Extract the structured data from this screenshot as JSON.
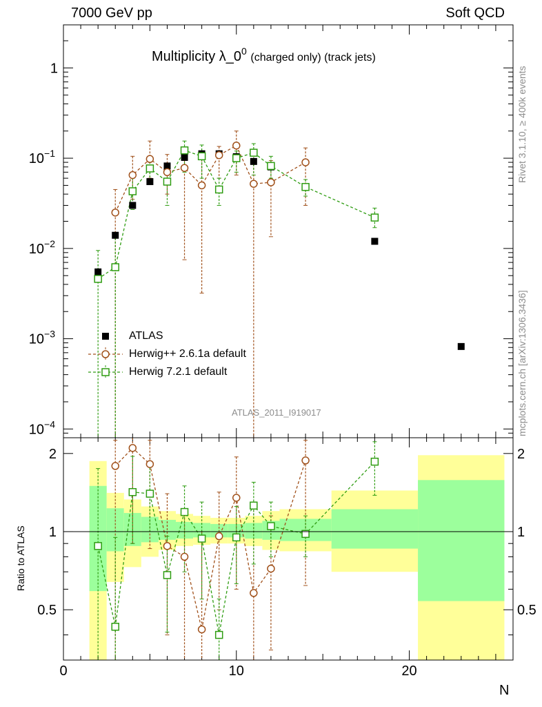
{
  "header": {
    "left": "7000 GeV pp",
    "right": "Soft QCD"
  },
  "side_text": {
    "top": "Rivet 3.1.10, ≥ 400k events",
    "bottom": "mcplots.cern.ch [arXiv:1306.3436]"
  },
  "colors": {
    "atlas": "#000000",
    "herwigpp": "#a0501a",
    "herwig7": "#2e9c11",
    "band_inner": "#9cff9c",
    "band_outer": "#ffff99",
    "side_text": "#8c8c8c"
  },
  "chart_data": {
    "type": "scatter",
    "title": "Multiplicity λ_0",
    "title_sup": "0",
    "title_suffix": "(charged only) (track jets)",
    "analysis": "ATLAS_2011_I919017",
    "xlabel": "N",
    "ylabel_ratio": "Ratio to ATLAS",
    "xlim": [
      0,
      26
    ],
    "ylim": [
      8e-05,
      3
    ],
    "yscale": "log",
    "ratio_ylim": [
      0.32,
      2.3
    ],
    "x_ticks": [
      0,
      10,
      20
    ],
    "y_ticks": [
      {
        "value": 1,
        "base": "1",
        "exp": ""
      },
      {
        "value": 0.1,
        "base": "10",
        "exp": "−1"
      },
      {
        "value": 0.01,
        "base": "10",
        "exp": "−2"
      },
      {
        "value": 0.001,
        "base": "10",
        "exp": "−3"
      },
      {
        "value": 0.0001,
        "base": "10",
        "exp": "−4"
      }
    ],
    "ratio_ticks": [
      0.5,
      1,
      2
    ],
    "legend": [
      "ATLAS",
      "Herwig++ 2.6.1a default",
      "Herwig 7.2.1 default"
    ],
    "atlas": [
      {
        "x": 2,
        "y": 0.0055,
        "xlo": 1.5,
        "xhi": 2.5
      },
      {
        "x": 3,
        "y": 0.014,
        "xlo": 2.5,
        "xhi": 3.5
      },
      {
        "x": 4,
        "y": 0.03,
        "xlo": 3.5,
        "xhi": 4.5
      },
      {
        "x": 5,
        "y": 0.055,
        "xlo": 4.5,
        "xhi": 5.5
      },
      {
        "x": 6,
        "y": 0.082,
        "xlo": 5.5,
        "xhi": 6.5
      },
      {
        "x": 7,
        "y": 0.102,
        "xlo": 6.5,
        "xhi": 7.5
      },
      {
        "x": 8,
        "y": 0.112,
        "xlo": 7.5,
        "xhi": 8.5
      },
      {
        "x": 9,
        "y": 0.112,
        "xlo": 8.5,
        "xhi": 9.5
      },
      {
        "x": 10,
        "y": 0.104,
        "xlo": 9.5,
        "xhi": 10.5
      },
      {
        "x": 11,
        "y": 0.092,
        "xlo": 10.5,
        "xhi": 11.5
      },
      {
        "x": 12,
        "y": 0.08,
        "xlo": 11.5,
        "xhi": 12.5
      },
      {
        "x": 14,
        "y": 0.048,
        "xlo": 12.5,
        "xhi": 15.5
      },
      {
        "x": 18,
        "y": 0.012,
        "xlo": 15.5,
        "xhi": 20.5
      },
      {
        "x": 23,
        "y": 0.00082,
        "xlo": 20.5,
        "xhi": 25.5
      }
    ],
    "bands": [
      {
        "xlo": 1.5,
        "xhi": 2.5,
        "inner": [
          0.59,
          1.5
        ],
        "outer": [
          0.3,
          1.87
        ]
      },
      {
        "xlo": 2.5,
        "xhi": 3.5,
        "inner": [
          0.84,
          1.23
        ],
        "outer": [
          0.64,
          1.41
        ]
      },
      {
        "xlo": 3.5,
        "xhi": 4.5,
        "inner": [
          0.88,
          1.18
        ],
        "outer": [
          0.73,
          1.33
        ]
      },
      {
        "xlo": 4.5,
        "xhi": 5.5,
        "inner": [
          0.91,
          1.14
        ],
        "outer": [
          0.8,
          1.25
        ]
      },
      {
        "xlo": 5.5,
        "xhi": 6.5,
        "inner": [
          0.93,
          1.11
        ],
        "outer": [
          0.85,
          1.2
        ]
      },
      {
        "xlo": 6.5,
        "xhi": 7.5,
        "inner": [
          0.94,
          1.09
        ],
        "outer": [
          0.88,
          1.17
        ]
      },
      {
        "xlo": 7.5,
        "xhi": 8.5,
        "inner": [
          0.95,
          1.08
        ],
        "outer": [
          0.89,
          1.15
        ]
      },
      {
        "xlo": 8.5,
        "xhi": 9.5,
        "inner": [
          0.95,
          1.07
        ],
        "outer": [
          0.9,
          1.13
        ]
      },
      {
        "xlo": 9.5,
        "xhi": 10.5,
        "inner": [
          0.95,
          1.07
        ],
        "outer": [
          0.9,
          1.13
        ]
      },
      {
        "xlo": 10.5,
        "xhi": 11.5,
        "inner": [
          0.94,
          1.08
        ],
        "outer": [
          0.88,
          1.15
        ]
      },
      {
        "xlo": 11.5,
        "xhi": 12.5,
        "inner": [
          0.93,
          1.1
        ],
        "outer": [
          0.85,
          1.2
        ]
      },
      {
        "xlo": 12.5,
        "xhi": 15.5,
        "inner": [
          0.92,
          1.12
        ],
        "outer": [
          0.84,
          1.22
        ]
      },
      {
        "xlo": 15.5,
        "xhi": 20.5,
        "inner": [
          0.86,
          1.22
        ],
        "outer": [
          0.7,
          1.44
        ]
      },
      {
        "xlo": 20.5,
        "xhi": 25.5,
        "inner": [
          0.54,
          1.58
        ],
        "outer": [
          0.3,
          1.97
        ]
      }
    ],
    "series": [
      {
        "name": "Herwig++ 2.6.1a default",
        "marker": "circle",
        "points": [
          {
            "x": 3,
            "y": 0.025,
            "ylo": 1e-05,
            "yhi": 0.045,
            "r": 1.79,
            "rlo": 0.3,
            "rhi": 2.25
          },
          {
            "x": 4,
            "y": 0.065,
            "ylo": 0.035,
            "yhi": 0.105,
            "r": 2.1,
            "rlo": 0.9,
            "rhi": 2.3
          },
          {
            "x": 5,
            "y": 0.098,
            "ylo": 0.06,
            "yhi": 0.155,
            "r": 1.82,
            "rlo": 0.86,
            "rhi": 2.25
          },
          {
            "x": 6,
            "y": 0.07,
            "ylo": 0.04,
            "yhi": 0.11,
            "r": 0.88,
            "rlo": 0.4,
            "rhi": 1.4
          },
          {
            "x": 7,
            "y": 0.078,
            "ylo": 0.0075,
            "yhi": 0.125,
            "r": 0.8,
            "rlo": 0.3,
            "rhi": 1.2
          },
          {
            "x": 8,
            "y": 0.05,
            "ylo": 0.0032,
            "yhi": 0.115,
            "r": 0.42,
            "rlo": 0.3,
            "rhi": 1.0
          },
          {
            "x": 9,
            "y": 0.108,
            "ylo": 0.06,
            "yhi": 0.135,
            "r": 0.96,
            "rlo": 0.5,
            "rhi": 1.42
          },
          {
            "x": 10,
            "y": 0.138,
            "ylo": 0.065,
            "yhi": 0.2,
            "r": 1.35,
            "rlo": 0.6,
            "rhi": 1.94
          },
          {
            "x": 11,
            "y": 0.052,
            "ylo": 1e-05,
            "yhi": 0.112,
            "r": 0.58,
            "rlo": 0.3,
            "rhi": 1.25
          },
          {
            "x": 12,
            "y": 0.054,
            "ylo": 0.0135,
            "yhi": 0.094,
            "r": 0.72,
            "rlo": 0.35,
            "rhi": 1.15
          },
          {
            "x": 14,
            "y": 0.09,
            "ylo": 0.03,
            "yhi": 0.13,
            "r": 1.88,
            "rlo": 0.62,
            "rhi": 2.25
          }
        ]
      },
      {
        "name": "Herwig 7.2.1 default",
        "marker": "square",
        "points": [
          {
            "x": 2,
            "y": 0.0046,
            "ylo": 1e-05,
            "yhi": 0.0095,
            "r": 0.88,
            "rlo": 0.3,
            "rhi": 1.75
          },
          {
            "x": 3,
            "y": 0.0062,
            "ylo": 1e-05,
            "yhi": 0.013,
            "r": 0.43,
            "rlo": 0.3,
            "rhi": 0.95
          },
          {
            "x": 4,
            "y": 0.043,
            "ylo": 0.027,
            "yhi": 0.06,
            "r": 1.42,
            "rlo": 0.9,
            "rhi": 1.95
          },
          {
            "x": 5,
            "y": 0.077,
            "ylo": 0.055,
            "yhi": 0.1,
            "r": 1.4,
            "rlo": 1.0,
            "rhi": 1.82
          },
          {
            "x": 6,
            "y": 0.055,
            "ylo": 0.03,
            "yhi": 0.08,
            "r": 0.68,
            "rlo": 0.41,
            "rhi": 0.96
          },
          {
            "x": 7,
            "y": 0.122,
            "ylo": 0.07,
            "yhi": 0.155,
            "r": 1.19,
            "rlo": 0.7,
            "rhi": 1.5
          },
          {
            "x": 8,
            "y": 0.105,
            "ylo": 0.06,
            "yhi": 0.14,
            "r": 0.94,
            "rlo": 0.55,
            "rhi": 1.3
          },
          {
            "x": 9,
            "y": 0.045,
            "ylo": 0.03,
            "yhi": 0.06,
            "r": 0.4,
            "rlo": 0.3,
            "rhi": 0.55
          },
          {
            "x": 10,
            "y": 0.1,
            "ylo": 0.07,
            "yhi": 0.12,
            "r": 0.95,
            "rlo": 0.63,
            "rhi": 1.25
          },
          {
            "x": 11,
            "y": 0.115,
            "ylo": 0.065,
            "yhi": 0.145,
            "r": 1.26,
            "rlo": 0.75,
            "rhi": 1.55
          },
          {
            "x": 12,
            "y": 0.082,
            "ylo": 0.06,
            "yhi": 0.105,
            "r": 1.05,
            "rlo": 0.8,
            "rhi": 1.3
          },
          {
            "x": 14,
            "y": 0.048,
            "ylo": 0.038,
            "yhi": 0.058,
            "r": 0.98,
            "rlo": 0.8,
            "rhi": 1.15
          },
          {
            "x": 18,
            "y": 0.022,
            "ylo": 0.017,
            "yhi": 0.028,
            "r": 1.86,
            "rlo": 1.38,
            "rhi": 2.22
          }
        ]
      }
    ]
  }
}
